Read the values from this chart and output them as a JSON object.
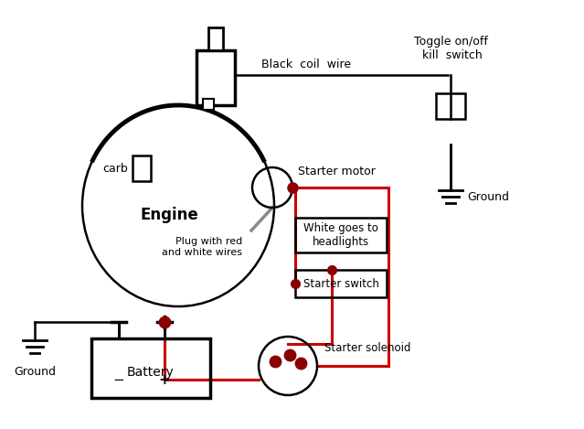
{
  "bg_color": "#ffffff",
  "line_color_black": "#000000",
  "line_color_red": "#cc0000",
  "dot_color": "#8b0000",
  "labels": {
    "engine": "Engine",
    "carb": "carb",
    "black_coil_wire": "Black  coil  wire",
    "toggle": "Toggle on/off\n kill  switch",
    "ground_top": "Ground",
    "starter_motor": "Starter motor",
    "plug": "Plug with red\nand white wires",
    "white_headlights": "White goes to\nheadlights",
    "starter_switch": "Starter switch",
    "starter_solenoid": "Starter solenoid",
    "battery": "Battery",
    "ground_bottom": "Ground"
  }
}
